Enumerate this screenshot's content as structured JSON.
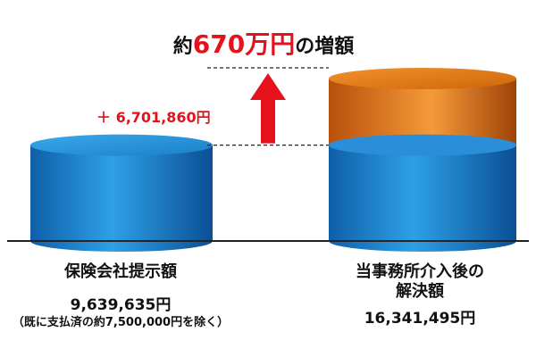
{
  "headline": {
    "prefix": "約",
    "amount": "670万円",
    "suffix": "の増額"
  },
  "increase_label": "＋ 6,701,860円",
  "chart_data": {
    "type": "bar",
    "title": "約670万円の増額",
    "categories": [
      {
        "name": "保険会社提示額",
        "value_text": "9,639,635円",
        "note": "（既に支払済の約7,500,000円を除く）"
      },
      {
        "name_lines": [
          "当事務所介入後の",
          "解決額"
        ],
        "value_text": "16,341,495円"
      }
    ],
    "values": [
      9639635,
      16341495
    ],
    "increase": 6701860,
    "ylim": [
      0,
      16341495
    ],
    "colors": {
      "base": "#1f8fd6",
      "increase": "#e77b12",
      "arrow": "#e5121c",
      "baseline": "#222222"
    }
  }
}
